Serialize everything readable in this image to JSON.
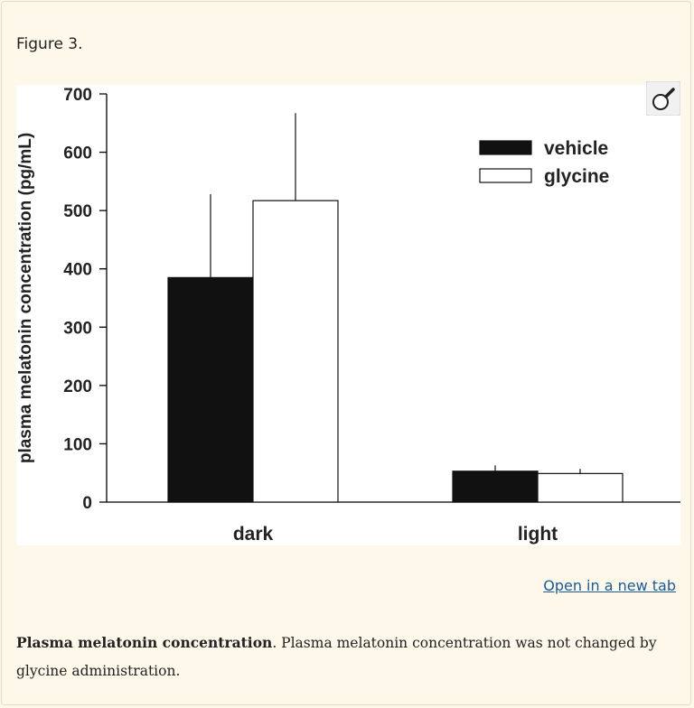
{
  "figure": {
    "label": "Figure 3.",
    "open_link": "Open in a new tab",
    "caption_title": "Plasma melatonin concentration",
    "caption_text": ". Plasma melatonin concentration was not changed by glycine administration."
  },
  "zoom_icon": "magnifier-icon",
  "chart_data": {
    "type": "bar",
    "categories": [
      "dark",
      "light"
    ],
    "series": [
      {
        "name": "vehicle",
        "values": [
          385,
          53
        ],
        "error": [
          143,
          10
        ],
        "color": "#111111"
      },
      {
        "name": "glycine",
        "values": [
          517,
          49
        ],
        "error": [
          150,
          8
        ],
        "color": "#ffffff"
      }
    ],
    "ylabel": "plasma melatonin concentration (pg/mL)",
    "xlabel": "",
    "ylim": [
      0,
      700
    ],
    "yticks": [
      "0",
      "100",
      "200",
      "300",
      "400",
      "500",
      "600",
      "700"
    ],
    "legend_placement": "top-right",
    "grid": false
  }
}
